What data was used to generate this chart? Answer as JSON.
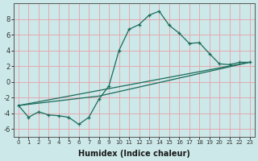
{
  "xlabel": "Humidex (Indice chaleur)",
  "bg_color": "#cce8e8",
  "grid_color": "#e8a0a8",
  "line_color": "#1a6b5a",
  "line1": {
    "x": [
      0,
      1,
      2,
      3,
      4,
      5,
      6,
      7,
      8,
      9,
      10,
      11,
      12,
      13,
      14,
      15,
      16,
      17,
      18,
      19,
      20,
      21,
      22,
      23
    ],
    "y": [
      -3.0,
      -4.5,
      -3.8,
      -4.2,
      -4.3,
      -4.5,
      -5.4,
      -4.5,
      -2.2,
      -0.5,
      4.0,
      6.7,
      7.3,
      8.5,
      9.0,
      7.2,
      6.2,
      4.9,
      5.0,
      3.6,
      2.3,
      2.2,
      2.5,
      2.5
    ]
  },
  "line2": {
    "x": [
      0,
      23
    ],
    "y": [
      -3.0,
      2.5
    ]
  },
  "line3": {
    "x": [
      0,
      8,
      23
    ],
    "y": [
      -3.0,
      -1.8,
      2.5
    ]
  },
  "ylim": [
    -7,
    10
  ],
  "xlim": [
    -0.5,
    23.5
  ],
  "yticks": [
    -6,
    -4,
    -2,
    0,
    2,
    4,
    6,
    8
  ],
  "xticks": [
    0,
    1,
    2,
    3,
    4,
    5,
    6,
    7,
    8,
    9,
    10,
    11,
    12,
    13,
    14,
    15,
    16,
    17,
    18,
    19,
    20,
    21,
    22,
    23
  ]
}
